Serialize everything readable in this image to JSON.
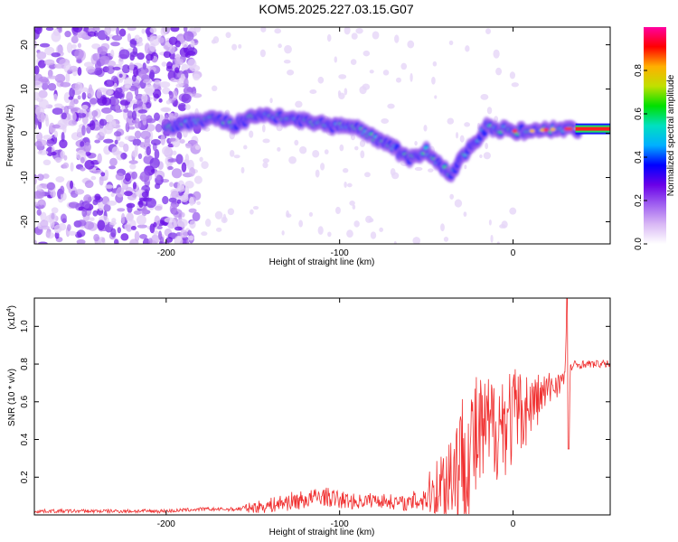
{
  "title": "KOM5.2025.227.03.15.G07",
  "chart_data": [
    {
      "type": "heatmap",
      "name": "spectrogram",
      "xlabel": "Height of straight line (km)",
      "ylabel": "Frequency (Hz)",
      "xlim": [
        -276,
        56
      ],
      "ylim": [
        -25,
        24
      ],
      "x_ticks": [
        -200,
        -100,
        0
      ],
      "x_tick_labels": [
        "-200",
        "-100",
        "0"
      ],
      "y_ticks": [
        20,
        10,
        0,
        -10,
        -20
      ],
      "y_tick_labels": [
        "20",
        "10",
        "0",
        "-10",
        "-20"
      ],
      "colorbar": {
        "label": "Normalized spectral amplitude",
        "range": [
          0,
          1
        ],
        "ticks": [
          0.0,
          0.2,
          0.4,
          0.6,
          0.8
        ],
        "tick_labels": [
          "0.0",
          "0.2",
          "0.4",
          "0.6",
          "0.8"
        ],
        "colors": [
          "#ffffff",
          "#d9b8f5",
          "#a060f0",
          "#6a00e8",
          "#0000ff",
          "#00b0ff",
          "#00e0c0",
          "#00e000",
          "#c0e000",
          "#ffb000",
          "#ff0000",
          "#ff00a0"
        ]
      },
      "ridge": {
        "description_points_x": [
          -200,
          -190,
          -180,
          -170,
          -160,
          -150,
          -140,
          -130,
          -120,
          -110,
          -100,
          -90,
          -80,
          -70,
          -60,
          -50,
          -45,
          -40,
          -35,
          -30,
          -25,
          -20,
          -15,
          -10,
          -5,
          0,
          10,
          20,
          30,
          40,
          56
        ],
        "description_points_y": [
          1.5,
          2.0,
          3.0,
          3.0,
          2.0,
          3.5,
          4.0,
          3.0,
          3.0,
          2.0,
          1.5,
          1.0,
          -1.0,
          -3.0,
          -6.0,
          -4.0,
          -6.0,
          -8.0,
          -9.0,
          -6.0,
          -3.0,
          -1.0,
          1.5,
          0.5,
          1.0,
          0.5,
          0.5,
          0.8,
          1.0,
          1.0,
          1.0
        ]
      },
      "noise_region_x": [
        -276,
        -190
      ]
    },
    {
      "type": "line",
      "name": "snr",
      "xlabel": "Height of straight line (km)",
      "ylabel": "SNR (10 * v/v)",
      "y_scale_label": "(x10",
      "y_scale_exponent": "4",
      "y_scale_suffix": ")",
      "xlim": [
        -276,
        56
      ],
      "ylim": [
        0,
        1.15
      ],
      "x_ticks": [
        -200,
        -100,
        0
      ],
      "x_tick_labels": [
        "-200",
        "-100",
        "0"
      ],
      "y_ticks": [
        0.2,
        0.4,
        0.6,
        0.8,
        1.0
      ],
      "y_tick_labels": [
        "0.2",
        "0.4",
        "0.6",
        "0.8",
        "1.0"
      ],
      "series": [
        {
          "name": "SNR",
          "color": "#f03030",
          "x": [
            -276,
            -250,
            -220,
            -200,
            -180,
            -160,
            -150,
            -140,
            -130,
            -120,
            -110,
            -100,
            -90,
            -80,
            -70,
            -60,
            -50,
            -45,
            -40,
            -35,
            -30,
            -25,
            -20,
            -15,
            -10,
            -5,
            0,
            5,
            10,
            15,
            20,
            25,
            30,
            31,
            32,
            33,
            35,
            40,
            45,
            50,
            56
          ],
          "y": [
            0.02,
            0.02,
            0.02,
            0.02,
            0.03,
            0.03,
            0.04,
            0.05,
            0.07,
            0.08,
            0.1,
            0.08,
            0.07,
            0.08,
            0.07,
            0.06,
            0.1,
            0.14,
            0.18,
            0.24,
            0.3,
            0.36,
            0.4,
            0.44,
            0.48,
            0.5,
            0.52,
            0.55,
            0.58,
            0.62,
            0.66,
            0.7,
            0.72,
            1.15,
            0.35,
            0.78,
            0.79,
            0.8,
            0.8,
            0.8,
            0.8
          ],
          "amp": [
            0.01,
            0.01,
            0.01,
            0.01,
            0.01,
            0.01,
            0.03,
            0.04,
            0.05,
            0.05,
            0.05,
            0.05,
            0.04,
            0.04,
            0.04,
            0.04,
            0.1,
            0.15,
            0.22,
            0.3,
            0.35,
            0.4,
            0.35,
            0.3,
            0.3,
            0.3,
            0.28,
            0.22,
            0.18,
            0.14,
            0.1,
            0.08,
            0.05,
            0.0,
            0.0,
            0.03,
            0.03,
            0.02,
            0.02,
            0.02,
            0.02
          ]
        }
      ]
    }
  ]
}
